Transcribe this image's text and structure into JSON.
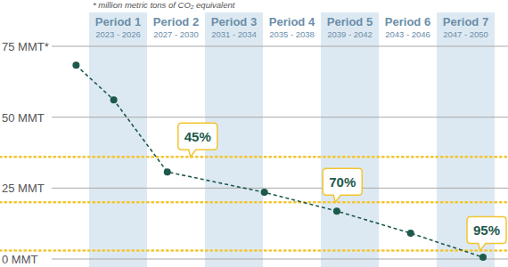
{
  "chart_data": {
    "type": "line",
    "subtitle": "* million metric tons of CO₂ equivalent",
    "periods": [
      {
        "label": "Period 1",
        "years": "2023 - 2026",
        "start": 2023,
        "end": 2026
      },
      {
        "label": "Period 2",
        "years": "2027 - 2030",
        "start": 2027,
        "end": 2030
      },
      {
        "label": "Period 3",
        "years": "2031 - 2034",
        "start": 2031,
        "end": 2034
      },
      {
        "label": "Period 4",
        "years": "2035 - 2038",
        "start": 2035,
        "end": 2038
      },
      {
        "label": "Period 5",
        "years": "2039 - 2042",
        "start": 2039,
        "end": 2042
      },
      {
        "label": "Period 6",
        "years": "2043 - 2046",
        "start": 2043,
        "end": 2046
      },
      {
        "label": "Period 7",
        "years": "2047 - 2050",
        "start": 2047,
        "end": 2050
      }
    ],
    "x": [
      2022.1,
      2024.7,
      2028.4,
      2035.1,
      2040.1,
      2045.2,
      2050.2
    ],
    "values": [
      68.3,
      56.1,
      30.7,
      23.5,
      16.9,
      9.1,
      0.6
    ],
    "color": "#1d5a4c",
    "marker": "circle",
    "line_style": "dashed",
    "xlim": [
      2021,
      2051
    ],
    "ylim": [
      0,
      75
    ],
    "yticks": [
      {
        "value": 0,
        "label": "0 MMT"
      },
      {
        "value": 25,
        "label": "25 MMT"
      },
      {
        "value": 50,
        "label": "50 MMT"
      },
      {
        "value": 75,
        "label": "75 MMT*"
      }
    ],
    "grid": true,
    "tick_labels": "y",
    "annotations": [
      {
        "label": "45%",
        "value": 45,
        "target": 36,
        "x": 2030
      },
      {
        "label": "70%",
        "value": 70,
        "target": 20,
        "x": 2040
      },
      {
        "label": "95%",
        "value": 95,
        "target": 3,
        "x": 2050
      }
    ]
  }
}
